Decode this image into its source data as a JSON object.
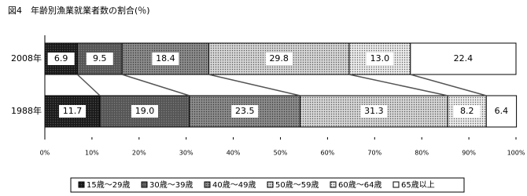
{
  "chart_data": {
    "type": "stacked-hbar",
    "title": "図4　年齢別漁業就業者数の割合(％)",
    "categories": [
      "2008年",
      "1988年"
    ],
    "series": [
      {
        "name": "15歳～29歳",
        "color": "#1a1a1a",
        "values": [
          6.9,
          11.7
        ]
      },
      {
        "name": "30歳～39歳",
        "color": "#555555",
        "values": [
          9.5,
          19.0
        ],
        "value_labels": [
          "9.5",
          "19.0"
        ]
      },
      {
        "name": "40歳～49歳",
        "color": "#8c8c8c",
        "values": [
          18.4,
          23.5
        ]
      },
      {
        "name": "50歳～59歳",
        "color": "#d6d6d6",
        "values": [
          29.8,
          31.3
        ]
      },
      {
        "name": "60歳～64歳",
        "color": "#ebebeb",
        "values": [
          13.0,
          8.2
        ],
        "value_labels": [
          "13.0",
          "8.2"
        ]
      },
      {
        "name": "65歳以上",
        "color": "#ffffff",
        "values": [
          22.4,
          6.4
        ]
      }
    ],
    "xlim": [
      0,
      100
    ],
    "xticks": [
      {
        "value": 0,
        "label": "0%"
      },
      {
        "value": 10,
        "label": "10%"
      },
      {
        "value": 20,
        "label": "20%"
      },
      {
        "value": 30,
        "label": "30%"
      },
      {
        "value": 40,
        "label": "40%"
      },
      {
        "value": 50,
        "label": "50%"
      },
      {
        "value": 60,
        "label": "60%"
      },
      {
        "value": 70,
        "label": "70%"
      },
      {
        "value": 80,
        "label": "80%"
      },
      {
        "value": 90,
        "label": "90%"
      },
      {
        "value": 100,
        "label": "100%"
      }
    ],
    "legend": "bottom"
  }
}
